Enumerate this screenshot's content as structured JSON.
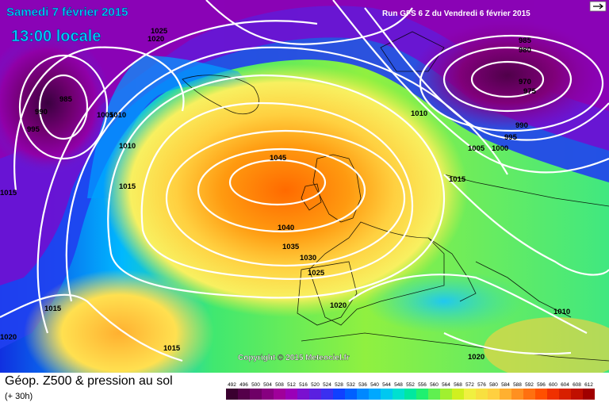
{
  "header": {
    "date": "Samedi 7 février 2015",
    "time": "13:00 locale",
    "run": "Run GFS 6 Z du Vendredi 6 février 2015"
  },
  "copyright": "Copyright © 2015 Meteociel.fr",
  "footer": {
    "title": "Géop. Z500 & pression au sol",
    "subtitle": "(+ 30h)"
  },
  "isobar_labels": [
    "1025",
    "1020",
    "985",
    "990",
    "995",
    "1005",
    "1010",
    "1015",
    "1045",
    "1040",
    "1035",
    "1030",
    "1025",
    "1020",
    "1015",
    "1015",
    "1010",
    "1005",
    "1000",
    "995",
    "990",
    "985",
    "980",
    "970",
    "975",
    "1010",
    "1015",
    "1020",
    "1015",
    "1010",
    "1020"
  ],
  "legend": {
    "values": [
      "492",
      "496",
      "500",
      "504",
      "508",
      "512",
      "516",
      "520",
      "524",
      "528",
      "532",
      "536",
      "540",
      "544",
      "548",
      "552",
      "556",
      "560",
      "564",
      "568",
      "572",
      "576",
      "580",
      "584",
      "588",
      "592",
      "596",
      "600",
      "604",
      "608",
      "612"
    ],
    "colors": [
      "#3a0030",
      "#55004a",
      "#6e0066",
      "#870080",
      "#a0009a",
      "#9a00b8",
      "#7a10d0",
      "#5a20e0",
      "#3a30f0",
      "#1040ff",
      "#0060ff",
      "#0088ff",
      "#00a8ff",
      "#00c8f0",
      "#00e0d0",
      "#00e8a0",
      "#20f070",
      "#60f050",
      "#a0f030",
      "#d0f020",
      "#f0f040",
      "#f8e040",
      "#ffd040",
      "#ffb030",
      "#ff9020",
      "#ff7010",
      "#ff5000",
      "#f03000",
      "#d82000",
      "#c01000",
      "#a00000"
    ]
  }
}
